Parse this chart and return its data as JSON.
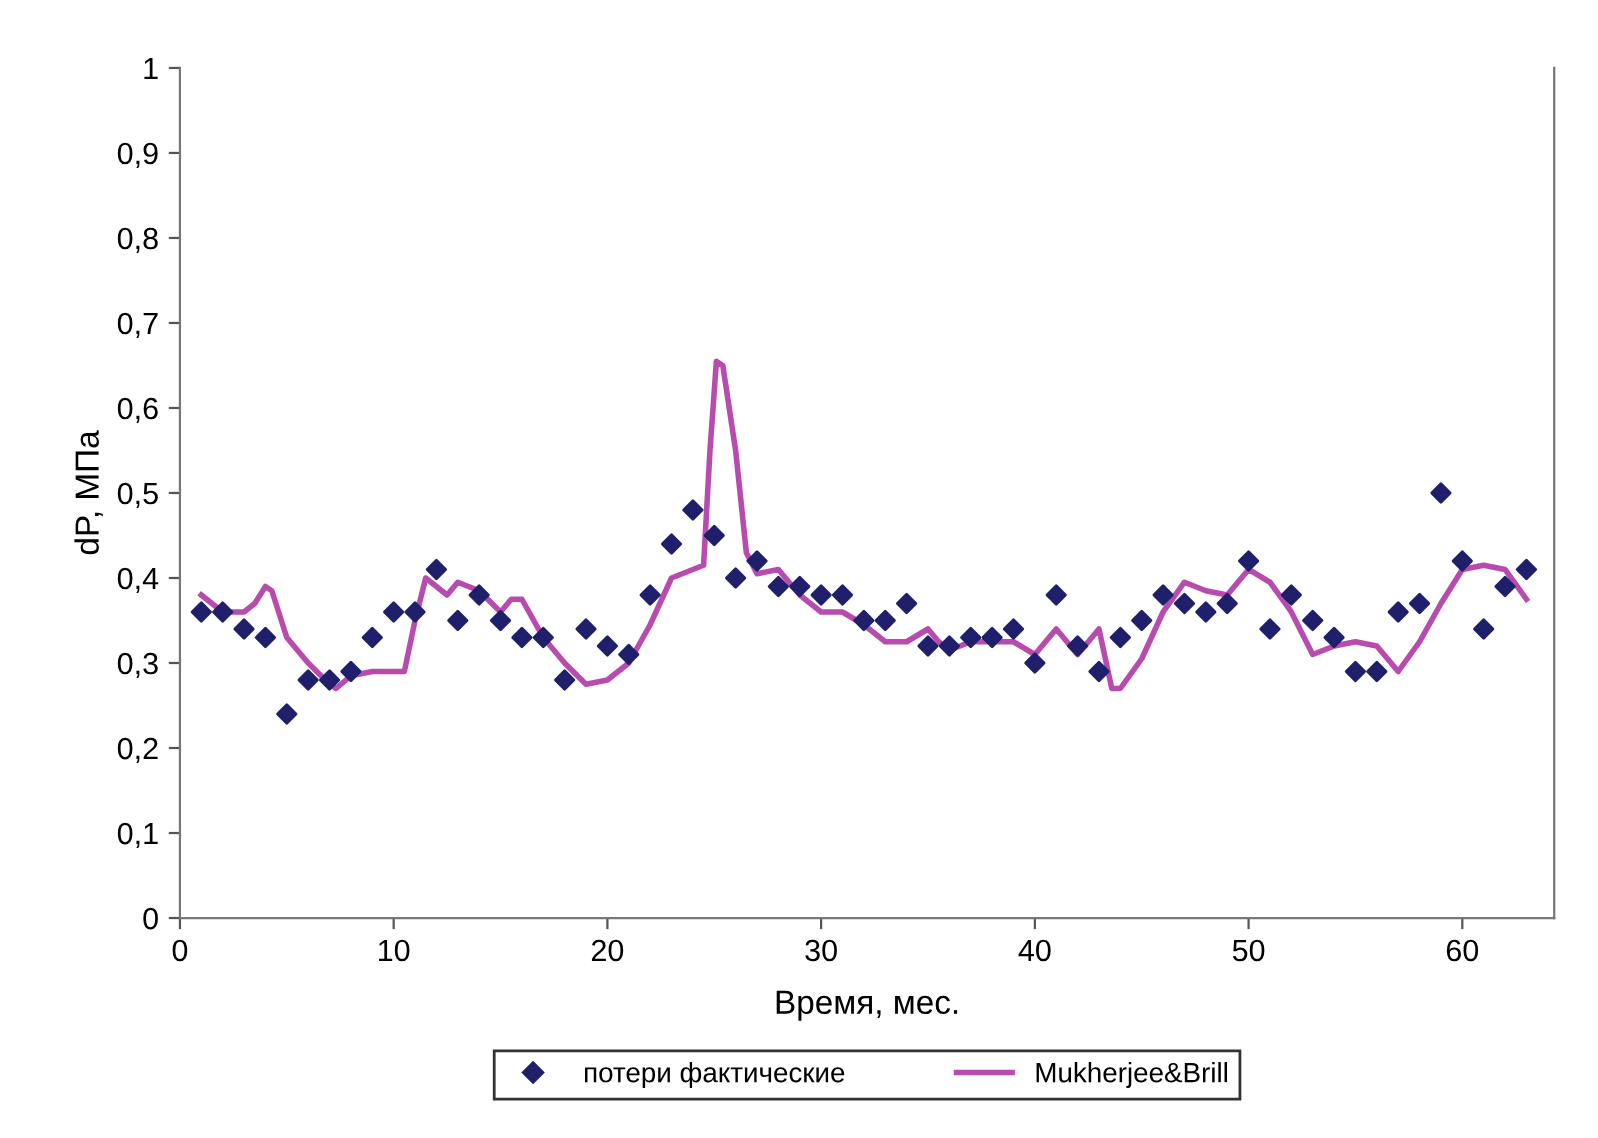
{
  "chart_data": {
    "type": "scatter",
    "xlabel": "Время, мес.",
    "ylabel": "dP, МПа",
    "xlim": [
      0,
      64.3
    ],
    "xticks": [
      0,
      10,
      20,
      30,
      40,
      50,
      60
    ],
    "ylim": [
      0,
      1
    ],
    "yticks": [
      {
        "value": 0,
        "label": "0"
      },
      {
        "value": 0.1,
        "label": "0,1"
      },
      {
        "value": 0.2,
        "label": "0,2"
      },
      {
        "value": 0.3,
        "label": "0,3"
      },
      {
        "value": 0.4,
        "label": "0,4"
      },
      {
        "value": 0.5,
        "label": "0,5"
      },
      {
        "value": 0.6,
        "label": "0,6"
      },
      {
        "value": 0.7,
        "label": "0,7"
      },
      {
        "value": 0.8,
        "label": "0,8"
      },
      {
        "value": 0.9,
        "label": "0,9"
      },
      {
        "value": 1,
        "label": "1"
      }
    ],
    "grid": false,
    "legend": "bottom",
    "series": [
      {
        "name": "потери фактические",
        "marker": "diamond",
        "color": "#1f1f6b",
        "x": [
          1,
          2,
          3,
          4,
          5,
          6,
          7,
          8,
          9,
          10,
          11,
          12,
          13,
          14,
          15,
          16,
          17,
          18,
          19,
          20,
          21,
          22,
          23,
          24,
          25,
          26,
          27,
          28,
          29,
          30,
          31,
          32,
          33,
          34,
          35,
          36,
          37,
          38,
          39,
          40,
          41,
          42,
          43,
          44,
          45,
          46,
          47,
          48,
          49,
          50,
          51,
          52,
          53,
          54,
          55,
          56,
          57,
          58,
          59,
          60,
          61,
          62,
          63
        ],
        "values": [
          0.36,
          0.36,
          0.34,
          0.33,
          0.24,
          0.28,
          0.28,
          0.29,
          0.33,
          0.36,
          0.36,
          0.41,
          0.35,
          0.38,
          0.35,
          0.33,
          0.33,
          0.28,
          0.34,
          0.32,
          0.31,
          0.38,
          0.44,
          0.48,
          0.45,
          0.4,
          0.42,
          0.39,
          0.39,
          0.38,
          0.38,
          0.35,
          0.35,
          0.37,
          0.32,
          0.32,
          0.33,
          0.33,
          0.34,
          0.3,
          0.38,
          0.32,
          0.29,
          0.33,
          0.35,
          0.38,
          0.37,
          0.36,
          0.37,
          0.42,
          0.34,
          0.38,
          0.35,
          0.33,
          0.29,
          0.29,
          0.36,
          0.37,
          0.5,
          0.42,
          0.34,
          0.39,
          0.41
        ]
      },
      {
        "name": "Mukherjee&Brill",
        "type": "line",
        "marker": "none",
        "line_style": "solid",
        "color": "#b84bae",
        "x": [
          1,
          2,
          3,
          3.5,
          4,
          4.3,
          5,
          6,
          7,
          7.3,
          8,
          9,
          10,
          10.5,
          11,
          11.5,
          12,
          12.5,
          13,
          14,
          15,
          15.5,
          16,
          17,
          18,
          19,
          20,
          21,
          22,
          23,
          24,
          24.5,
          24.8,
          25.1,
          25.4,
          26,
          26.5,
          27,
          28,
          29,
          30,
          31,
          32,
          33,
          34,
          35,
          35.5,
          36,
          37,
          38,
          39,
          40,
          41,
          42,
          43,
          43.6,
          44,
          45,
          46,
          47,
          48,
          49,
          50,
          51,
          52,
          53,
          54,
          55,
          56,
          57,
          58,
          59,
          60,
          61,
          62,
          63
        ],
        "values": [
          0.38,
          0.36,
          0.36,
          0.37,
          0.39,
          0.385,
          0.33,
          0.3,
          0.275,
          0.27,
          0.285,
          0.29,
          0.29,
          0.29,
          0.35,
          0.4,
          0.39,
          0.38,
          0.395,
          0.385,
          0.36,
          0.375,
          0.375,
          0.33,
          0.3,
          0.275,
          0.28,
          0.3,
          0.345,
          0.4,
          0.41,
          0.415,
          0.55,
          0.655,
          0.65,
          0.55,
          0.43,
          0.405,
          0.41,
          0.38,
          0.36,
          0.36,
          0.345,
          0.325,
          0.325,
          0.34,
          0.325,
          0.315,
          0.325,
          0.325,
          0.325,
          0.31,
          0.34,
          0.31,
          0.34,
          0.27,
          0.27,
          0.305,
          0.36,
          0.395,
          0.385,
          0.38,
          0.41,
          0.395,
          0.36,
          0.31,
          0.32,
          0.325,
          0.32,
          0.29,
          0.325,
          0.37,
          0.41,
          0.415,
          0.41,
          0.375
        ]
      }
    ]
  }
}
